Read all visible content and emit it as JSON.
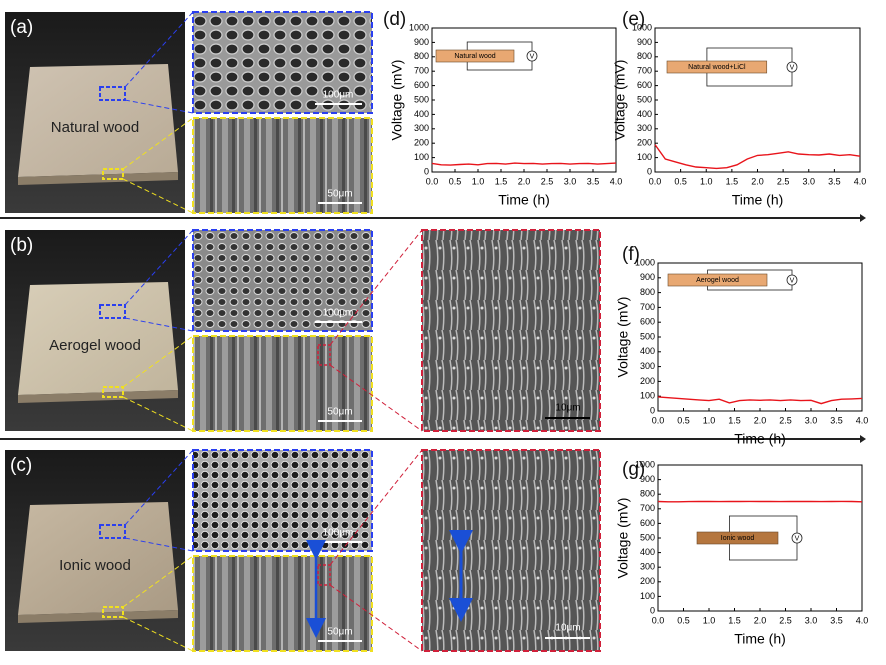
{
  "panels": {
    "a": {
      "label": "(a)",
      "sample": "Natural wood",
      "scale_top": "100μm",
      "scale_bottom": "50μm"
    },
    "b": {
      "label": "(b)",
      "sample": "Aerogel wood",
      "scale_top": "100μm",
      "scale_bottom": "50μm",
      "scale_zoom": "10μm"
    },
    "c": {
      "label": "(c)",
      "sample": "Ionic wood",
      "scale_top": "100μm",
      "scale_bottom": "50μm",
      "scale_zoom": "10μm"
    }
  },
  "chart_data": [
    {
      "type": "line",
      "label": "(d)",
      "inset_label": "Natural wood",
      "meter_label": "V",
      "xlabel": "Time (h)",
      "ylabel": "Voltage (mV)",
      "color": "#e8141b",
      "x": [
        0,
        0.2,
        0.4,
        0.6,
        0.8,
        1.0,
        1.2,
        1.4,
        1.6,
        1.8,
        2.0,
        2.2,
        2.4,
        2.6,
        2.8,
        3.0,
        3.2,
        3.4,
        3.6,
        3.8,
        4.0
      ],
      "values": [
        60,
        50,
        48,
        52,
        55,
        50,
        58,
        60,
        55,
        62,
        58,
        60,
        55,
        58,
        60,
        55,
        58,
        60,
        55,
        58,
        62
      ],
      "xlim": [
        0,
        4
      ],
      "ylim": [
        0,
        1000
      ],
      "xticks": [
        {
          "value": 0,
          "label": "0.0"
        },
        {
          "value": 0.5,
          "label": "0.5"
        },
        {
          "value": 1,
          "label": "1.0"
        },
        {
          "value": 1.5,
          "label": "1.5"
        },
        {
          "value": 2,
          "label": "2.0"
        },
        {
          "value": 2.5,
          "label": "2.5"
        },
        {
          "value": 3,
          "label": "3.0"
        },
        {
          "value": 3.5,
          "label": "3.5"
        },
        {
          "value": 4,
          "label": "4.0"
        }
      ],
      "yticks": [
        0,
        100,
        200,
        300,
        400,
        500,
        600,
        700,
        800,
        900,
        1000
      ]
    },
    {
      "type": "line",
      "label": "(e)",
      "inset_label": "Natural wood+LiCl",
      "meter_label": "V",
      "xlabel": "Time (h)",
      "ylabel": "Voltage (mV)",
      "color": "#e8141b",
      "x": [
        0,
        0.2,
        0.4,
        0.6,
        0.8,
        1.0,
        1.2,
        1.4,
        1.6,
        1.8,
        2.0,
        2.2,
        2.4,
        2.6,
        2.8,
        3.0,
        3.2,
        3.4,
        3.6,
        3.8,
        4.0
      ],
      "values": [
        190,
        90,
        70,
        50,
        35,
        30,
        25,
        30,
        50,
        90,
        115,
        120,
        130,
        140,
        125,
        120,
        118,
        125,
        115,
        120,
        110
      ],
      "xlim": [
        0,
        4
      ],
      "ylim": [
        0,
        1000
      ],
      "xticks": [
        {
          "value": 0,
          "label": "0.0"
        },
        {
          "value": 0.5,
          "label": "0.5"
        },
        {
          "value": 1,
          "label": "1.0"
        },
        {
          "value": 1.5,
          "label": "1.5"
        },
        {
          "value": 2,
          "label": "2.0"
        },
        {
          "value": 2.5,
          "label": "2.5"
        },
        {
          "value": 3,
          "label": "3.0"
        },
        {
          "value": 3.5,
          "label": "3.5"
        },
        {
          "value": 4,
          "label": "4.0"
        }
      ],
      "yticks": [
        0,
        100,
        200,
        300,
        400,
        500,
        600,
        700,
        800,
        900,
        1000
      ]
    },
    {
      "type": "line",
      "label": "(f)",
      "inset_label": "Aerogel wood",
      "meter_label": "V",
      "xlabel": "Time (h)",
      "ylabel": "Voltage (mV)",
      "color": "#e8141b",
      "x": [
        0,
        0.2,
        0.4,
        0.6,
        0.8,
        1.0,
        1.2,
        1.4,
        1.6,
        1.8,
        2.0,
        2.2,
        2.4,
        2.6,
        2.8,
        3.0,
        3.2,
        3.4,
        3.6,
        3.8,
        4.0
      ],
      "values": [
        95,
        90,
        85,
        80,
        75,
        70,
        80,
        55,
        70,
        75,
        72,
        75,
        70,
        75,
        70,
        72,
        50,
        70,
        80,
        82,
        85
      ],
      "xlim": [
        0,
        4
      ],
      "ylim": [
        0,
        1000
      ],
      "xticks": [
        {
          "value": 0,
          "label": "0.0"
        },
        {
          "value": 0.5,
          "label": "0.5"
        },
        {
          "value": 1,
          "label": "1.0"
        },
        {
          "value": 1.5,
          "label": "1.5"
        },
        {
          "value": 2,
          "label": "2.0"
        },
        {
          "value": 2.5,
          "label": "2.5"
        },
        {
          "value": 3,
          "label": "3.0"
        },
        {
          "value": 3.5,
          "label": "3.5"
        },
        {
          "value": 4,
          "label": "4.0"
        }
      ],
      "yticks": [
        0,
        100,
        200,
        300,
        400,
        500,
        600,
        700,
        800,
        900,
        1000
      ]
    },
    {
      "type": "line",
      "label": "(g)",
      "inset_label": "Ionic wood",
      "meter_label": "V",
      "xlabel": "Time (h)",
      "ylabel": "Voltage (mV)",
      "color": "#e8141b",
      "x": [
        0,
        0.2,
        0.4,
        0.6,
        0.8,
        1.0,
        1.2,
        1.4,
        1.6,
        1.8,
        2.0,
        2.2,
        2.4,
        2.6,
        2.8,
        3.0,
        3.2,
        3.4,
        3.6,
        3.8,
        4.0
      ],
      "values": [
        750,
        748,
        748,
        749,
        750,
        750,
        749,
        750,
        750,
        751,
        750,
        750,
        749,
        750,
        750,
        750,
        749,
        750,
        751,
        750,
        748
      ],
      "xlim": [
        0,
        4
      ],
      "ylim": [
        0,
        1000
      ],
      "xticks": [
        {
          "value": 0,
          "label": "0.0"
        },
        {
          "value": 0.5,
          "label": "0.5"
        },
        {
          "value": 1,
          "label": "1.0"
        },
        {
          "value": 1.5,
          "label": "1.5"
        },
        {
          "value": 2,
          "label": "2.0"
        },
        {
          "value": 2.5,
          "label": "2.5"
        },
        {
          "value": 3,
          "label": "3.0"
        },
        {
          "value": 3.5,
          "label": "3.5"
        },
        {
          "value": 4,
          "label": "4.0"
        }
      ],
      "yticks": [
        0,
        100,
        200,
        300,
        400,
        500,
        600,
        700,
        800,
        900,
        1000
      ]
    }
  ]
}
